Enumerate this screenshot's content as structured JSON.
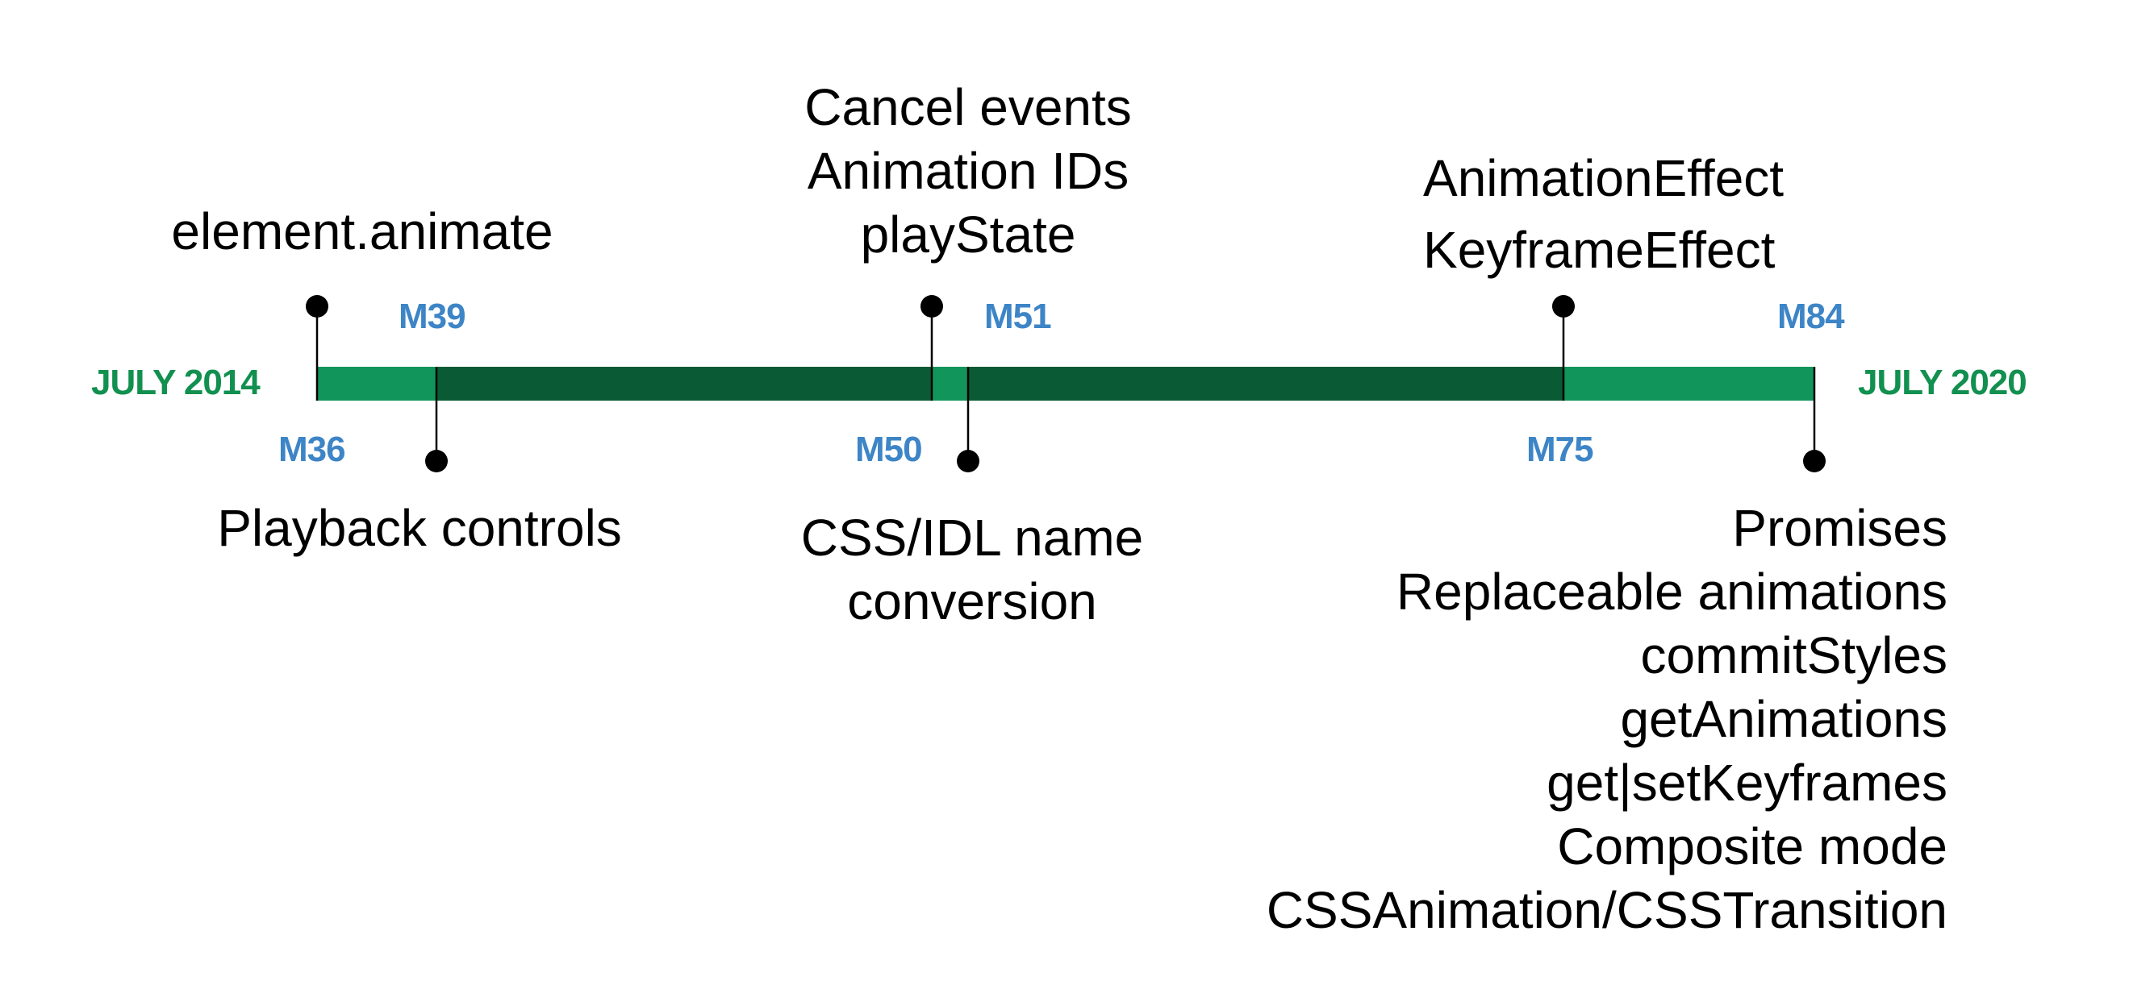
{
  "colors": {
    "early": "#12955a",
    "mid": "#095a35",
    "milestone": "#3d85c6",
    "date": "#11904f",
    "pin": "#000000"
  },
  "start_date": "JULY 2014",
  "end_date": "JULY 2020",
  "milestones": [
    {
      "label": "M36",
      "features": [
        "element.animate"
      ]
    },
    {
      "label": "M39",
      "features": [
        "Playback controls"
      ]
    },
    {
      "label": "M50",
      "features": [
        "Cancel events",
        "Animation IDs",
        "playState"
      ]
    },
    {
      "label": "M51",
      "features": [
        "CSS/IDL name",
        "conversion"
      ]
    },
    {
      "label": "M75",
      "features": [
        "AnimationEffect",
        "KeyframeEffect"
      ]
    },
    {
      "label": "M84",
      "features": [
        "Promises",
        "Replaceable animations",
        "commitStyles",
        "getAnimations",
        "get|setKeyframes",
        "Composite mode",
        "CSSAnimation/CSSTransition"
      ]
    }
  ]
}
